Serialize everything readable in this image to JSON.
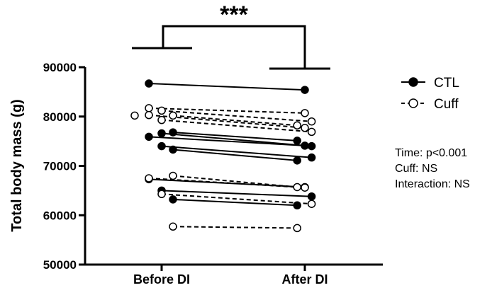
{
  "chart_data": {
    "type": "line",
    "subtype": "paired before-after plot",
    "title": "",
    "xlabel": "",
    "ylabel": "Total body mass (g)",
    "categories": [
      "Before DI",
      "After DI"
    ],
    "ylim": [
      50000,
      90000
    ],
    "yticks": [
      50000,
      60000,
      70000,
      80000,
      90000
    ],
    "grid": false,
    "legend_position": "right",
    "legend": [
      {
        "label": "CTL",
        "marker": "filled-circle",
        "line": "solid",
        "color": "#000000"
      },
      {
        "label": "Cuff",
        "marker": "open-circle",
        "line": "dashed",
        "color": "#000000"
      }
    ],
    "series": [
      {
        "group": "CTL",
        "values": [
          86700,
          85400
        ]
      },
      {
        "group": "CTL",
        "values": [
          76600,
          74000
        ]
      },
      {
        "group": "CTL",
        "values": [
          76800,
          75100
        ]
      },
      {
        "group": "CTL",
        "values": [
          75900,
          74100
        ]
      },
      {
        "group": "CTL",
        "values": [
          74000,
          71700
        ]
      },
      {
        "group": "CTL",
        "values": [
          73300,
          71100
        ]
      },
      {
        "group": "CTL",
        "values": [
          67300,
          65700
        ]
      },
      {
        "group": "CTL",
        "values": [
          65000,
          63800
        ]
      },
      {
        "group": "CTL",
        "values": [
          63200,
          62000
        ]
      },
      {
        "group": "Cuff",
        "values": [
          81700,
          80700
        ]
      },
      {
        "group": "Cuff",
        "values": [
          81200,
          79000
        ]
      },
      {
        "group": "Cuff",
        "values": [
          80200,
          78200
        ]
      },
      {
        "group": "Cuff",
        "values": [
          80300,
          77700
        ]
      },
      {
        "group": "Cuff",
        "values": [
          79300,
          76900
        ]
      },
      {
        "group": "Cuff",
        "values": [
          68000,
          65700
        ]
      },
      {
        "group": "Cuff",
        "values": [
          67500,
          65600
        ]
      },
      {
        "group": "Cuff",
        "values": [
          64300,
          62300
        ]
      },
      {
        "group": "Cuff",
        "values": [
          57700,
          57400
        ]
      }
    ],
    "extra_points": [
      {
        "group": "Cuff",
        "category": "Before DI",
        "value": 80200
      }
    ],
    "significance": {
      "label": "***"
    },
    "stats": [
      "Time: p<0.001",
      "Cuff: NS",
      "Interaction: NS"
    ]
  }
}
